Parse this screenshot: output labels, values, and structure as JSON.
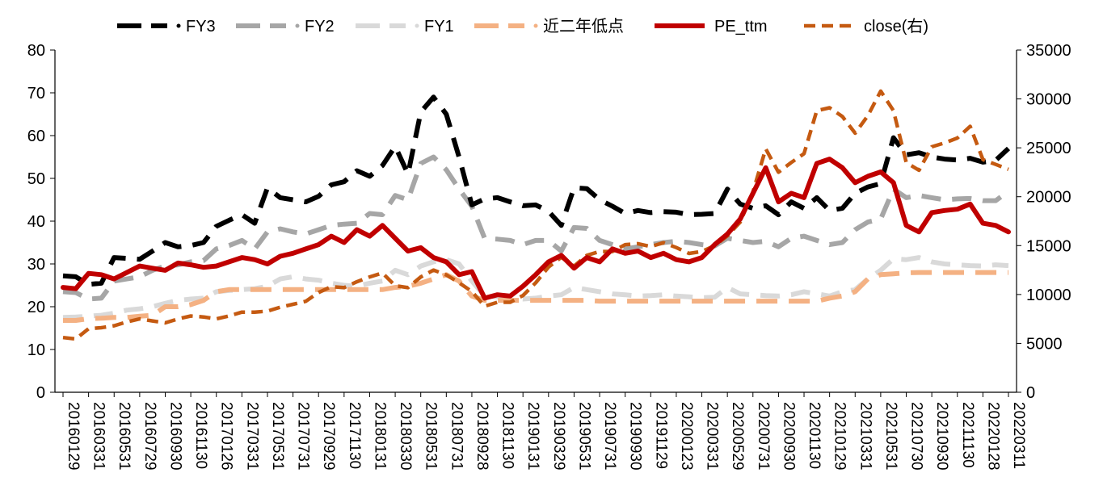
{
  "chart_data": {
    "type": "line",
    "x": [
      "20160129",
      "20160229",
      "20160331",
      "20160429",
      "20160531",
      "20160630",
      "20160729",
      "20160831",
      "20160930",
      "20161031",
      "20161130",
      "20161230",
      "20170126",
      "20170228",
      "20170331",
      "20170428",
      "20170531",
      "20170630",
      "20170731",
      "20170831",
      "20170929",
      "20171031",
      "20171130",
      "20171229",
      "20180131",
      "20180228",
      "20180330",
      "20180427",
      "20180531",
      "20180629",
      "20180731",
      "20180831",
      "20180928",
      "20181031",
      "20181130",
      "20181228",
      "20190131",
      "20190228",
      "20190329",
      "20190430",
      "20190531",
      "20190628",
      "20190731",
      "20190830",
      "20190930",
      "20191031",
      "20191129",
      "20191231",
      "20200123",
      "20200228",
      "20200331",
      "20200430",
      "20200529",
      "20200630",
      "20200731",
      "20200831",
      "20200930",
      "20201030",
      "20201130",
      "20201231",
      "20210129",
      "20210226",
      "20210331",
      "20210430",
      "20210531",
      "20210630",
      "20210730",
      "20210831",
      "20210930",
      "20211029",
      "20211130",
      "20211231",
      "20220128",
      "20220228",
      "20220311"
    ],
    "x_tick_labels": [
      "20160129",
      "20160331",
      "20160531",
      "20160729",
      "20160930",
      "20161130",
      "20170126",
      "20170331",
      "20170531",
      "20170731",
      "20170929",
      "20171130",
      "20180131",
      "20180330",
      "20180531",
      "20180731",
      "20180928",
      "20181130",
      "20190131",
      "20190329",
      "20190531",
      "20190731",
      "20190930",
      "20191129",
      "20200123",
      "20200331",
      "20200529",
      "20200731",
      "20200930",
      "20201130",
      "20210129",
      "20210331",
      "20210531",
      "20210730",
      "20210930",
      "20211130",
      "20220128",
      "20220311"
    ],
    "ylim_left": [
      0,
      80
    ],
    "yticks_left": [
      "0",
      "10",
      "20",
      "30",
      "40",
      "50",
      "60",
      "70",
      "80"
    ],
    "ylim_right": [
      0,
      35000
    ],
    "yticks_right": [
      "0",
      "5000",
      "10000",
      "15000",
      "20000",
      "25000",
      "30000",
      "35000"
    ],
    "legend_position": "top",
    "series": [
      {
        "name": "FY3",
        "axis": "left",
        "color": "#000000",
        "style": "dash-thick",
        "values": [
          27.2,
          27.0,
          25.2,
          25.5,
          31.5,
          31.3,
          31.1,
          33.0,
          35.0,
          34.0,
          34.3,
          35.0,
          38.8,
          40.2,
          41.5,
          39.5,
          47.8,
          45.5,
          45.0,
          44.5,
          45.8,
          48.5,
          49.2,
          51.8,
          50.5,
          53.0,
          57.5,
          51.0,
          65.5,
          69.0,
          65.0,
          55.0,
          43.8,
          45.2,
          45.5,
          44.5,
          43.6,
          43.8,
          42.3,
          39.0,
          47.8,
          47.6,
          45.0,
          43.5,
          41.8,
          42.5,
          42.0,
          42.2,
          42.1,
          41.5,
          41.6,
          41.8,
          47.5,
          44.0,
          43.0,
          43.6,
          41.5,
          44.5,
          43.0,
          45.5,
          42.5,
          43.0,
          46.5,
          48.0,
          48.8,
          59.5,
          55.5,
          56.0,
          55.0,
          54.5,
          54.3,
          54.7,
          53.8,
          54.2,
          57.0
        ]
      },
      {
        "name": "FY2",
        "axis": "left",
        "color": "#a6a6a6",
        "style": "dash-thick",
        "values": [
          23.5,
          23.3,
          21.8,
          22.0,
          26.0,
          26.5,
          27.0,
          28.5,
          29.5,
          29.8,
          30.5,
          30.8,
          33.5,
          34.3,
          35.5,
          33.5,
          37.5,
          38.2,
          37.5,
          37.0,
          38.0,
          39.0,
          39.3,
          39.5,
          41.8,
          41.5,
          46.0,
          45.0,
          53.5,
          55.0,
          52.0,
          47.5,
          43.5,
          36.0,
          35.8,
          35.5,
          34.5,
          35.5,
          35.5,
          33.0,
          38.5,
          38.3,
          35.5,
          34.5,
          33.5,
          34.0,
          34.5,
          35.0,
          35.3,
          35.0,
          34.5,
          34.2,
          36.0,
          35.5,
          35.0,
          35.3,
          34.0,
          36.0,
          36.5,
          35.5,
          34.5,
          35.0,
          38.0,
          39.8,
          40.5,
          47.5,
          45.5,
          46.0,
          45.5,
          45.0,
          45.2,
          45.3,
          44.8,
          44.8,
          47.0
        ]
      },
      {
        "name": "FY1",
        "axis": "left",
        "color": "#d9d9d9",
        "style": "dash-thick",
        "values": [
          17.5,
          17.6,
          17.8,
          18.0,
          18.5,
          19.2,
          19.5,
          20.0,
          20.8,
          21.5,
          21.8,
          22.0,
          23.5,
          23.8,
          24.0,
          24.2,
          24.8,
          26.5,
          27.0,
          26.5,
          26.2,
          25.5,
          25.0,
          24.8,
          25.5,
          26.0,
          28.5,
          27.5,
          29.5,
          30.5,
          31.0,
          30.0,
          26.0,
          22.5,
          22.3,
          22.0,
          21.8,
          22.0,
          22.5,
          22.8,
          24.5,
          24.0,
          23.5,
          23.0,
          22.8,
          22.5,
          22.6,
          22.8,
          22.5,
          22.3,
          22.1,
          22.2,
          24.5,
          23.0,
          22.8,
          22.6,
          22.5,
          22.8,
          23.5,
          23.0,
          22.5,
          23.5,
          24.0,
          26.5,
          28.5,
          31.2,
          31.0,
          31.5,
          30.5,
          30.0,
          29.8,
          29.6,
          29.5,
          29.8,
          29.6
        ]
      },
      {
        "name": "近二年低点",
        "axis": "left",
        "color": "#f4b183",
        "style": "dash-long",
        "values": [
          16.8,
          16.8,
          17.2,
          17.3,
          17.5,
          17.5,
          17.8,
          18.0,
          20.0,
          20.0,
          20.5,
          21.5,
          23.5,
          24.0,
          24.0,
          24.0,
          24.0,
          24.0,
          24.0,
          24.0,
          24.0,
          24.0,
          24.0,
          24.0,
          24.0,
          24.0,
          24.5,
          24.8,
          25.5,
          26.5,
          27.5,
          26.0,
          22.5,
          21.5,
          21.5,
          21.5,
          21.5,
          21.5,
          21.5,
          21.5,
          21.5,
          21.5,
          21.3,
          21.3,
          21.3,
          21.3,
          21.3,
          21.3,
          21.3,
          21.3,
          21.3,
          21.3,
          21.3,
          21.3,
          21.3,
          21.3,
          21.3,
          21.3,
          21.3,
          21.3,
          22.0,
          22.5,
          23.5,
          26.5,
          27.5,
          27.7,
          27.9,
          28.0,
          28.0,
          28.0,
          28.0,
          28.0,
          28.0,
          28.0,
          28.0
        ]
      },
      {
        "name": "PE_ttm",
        "axis": "left",
        "color": "#c00000",
        "style": "solid",
        "values": [
          24.5,
          24.2,
          27.8,
          27.5,
          26.5,
          28.0,
          29.5,
          29.0,
          28.5,
          30.2,
          29.8,
          29.2,
          29.5,
          30.5,
          31.5,
          31.0,
          30.0,
          31.8,
          32.5,
          33.5,
          34.5,
          36.5,
          35.0,
          38.0,
          36.5,
          39.0,
          36.0,
          33.0,
          33.8,
          31.5,
          30.5,
          27.5,
          28.2,
          22.0,
          22.8,
          22.5,
          24.8,
          27.5,
          30.5,
          32.0,
          29.0,
          31.5,
          30.5,
          33.5,
          32.5,
          33.0,
          31.5,
          32.5,
          31.0,
          30.5,
          31.5,
          34.5,
          37.0,
          40.5,
          46.5,
          52.5,
          44.5,
          46.5,
          45.5,
          53.5,
          54.5,
          52.5,
          49.0,
          50.5,
          51.5,
          49.0,
          39.0,
          37.5,
          42.0,
          42.5,
          42.8,
          44.0,
          39.5,
          39.0,
          37.5
        ]
      },
      {
        "name": "close(右)",
        "axis": "right",
        "color": "#c55a11",
        "style": "dash-thin",
        "values": [
          5600,
          5450,
          6500,
          6600,
          6800,
          7200,
          7500,
          7300,
          7100,
          7500,
          7800,
          7700,
          7500,
          7800,
          8200,
          8200,
          8300,
          8700,
          9000,
          9300,
          10200,
          10800,
          10700,
          11300,
          11800,
          12200,
          10900,
          10700,
          11800,
          12500,
          12000,
          11200,
          10300,
          8800,
          9200,
          9200,
          9900,
          11200,
          12800,
          13800,
          12900,
          14000,
          14400,
          14400,
          15100,
          15200,
          14900,
          15300,
          14800,
          14200,
          14400,
          15000,
          16000,
          17400,
          20500,
          24900,
          22500,
          23500,
          24400,
          28800,
          29100,
          28200,
          26500,
          28300,
          30800,
          28800,
          23500,
          22700,
          25100,
          25500,
          26000,
          27200,
          23800,
          23300,
          22800
        ]
      }
    ]
  }
}
